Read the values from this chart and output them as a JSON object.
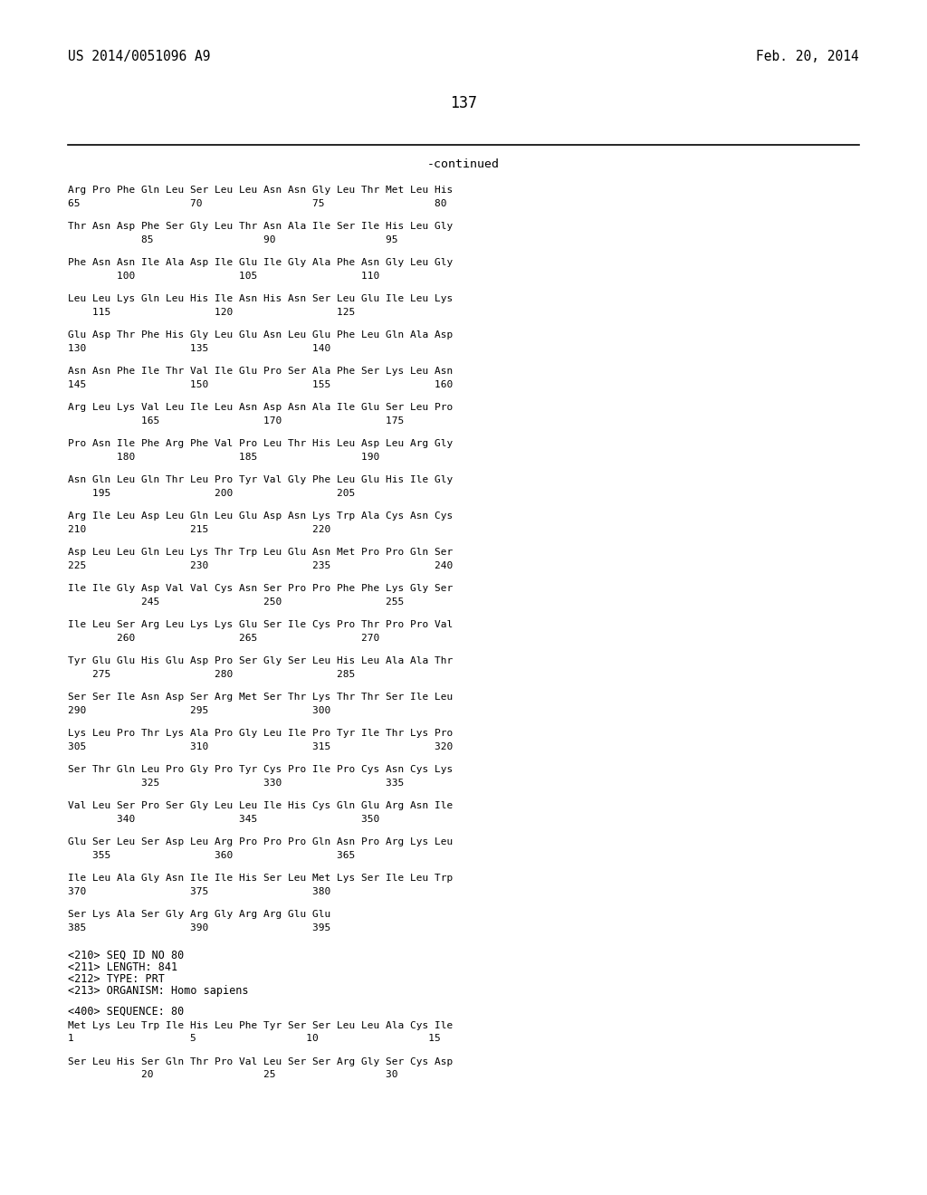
{
  "header_left": "US 2014/0051096 A9",
  "header_right": "Feb. 20, 2014",
  "page_number": "137",
  "continued_label": "-continued",
  "background_color": "#ffffff",
  "text_color": "#000000",
  "sequence_blocks": [
    {
      "seq_line": "Arg Pro Phe Gln Leu Ser Leu Leu Asn Asn Gly Leu Thr Met Leu His",
      "num_line": "65                  70                  75                  80"
    },
    {
      "seq_line": "Thr Asn Asp Phe Ser Gly Leu Thr Asn Ala Ile Ser Ile His Leu Gly",
      "num_line": "            85                  90                  95"
    },
    {
      "seq_line": "Phe Asn Asn Ile Ala Asp Ile Glu Ile Gly Ala Phe Asn Gly Leu Gly",
      "num_line": "        100                 105                 110"
    },
    {
      "seq_line": "Leu Leu Lys Gln Leu His Ile Asn His Asn Ser Leu Glu Ile Leu Lys",
      "num_line": "    115                 120                 125"
    },
    {
      "seq_line": "Glu Asp Thr Phe His Gly Leu Glu Asn Leu Glu Phe Leu Gln Ala Asp",
      "num_line": "130                 135                 140"
    },
    {
      "seq_line": "Asn Asn Phe Ile Thr Val Ile Glu Pro Ser Ala Phe Ser Lys Leu Asn",
      "num_line": "145                 150                 155                 160"
    },
    {
      "seq_line": "Arg Leu Lys Val Leu Ile Leu Asn Asp Asn Ala Ile Glu Ser Leu Pro",
      "num_line": "            165                 170                 175"
    },
    {
      "seq_line": "Pro Asn Ile Phe Arg Phe Val Pro Leu Thr His Leu Asp Leu Arg Gly",
      "num_line": "        180                 185                 190"
    },
    {
      "seq_line": "Asn Gln Leu Gln Thr Leu Pro Tyr Val Gly Phe Leu Glu His Ile Gly",
      "num_line": "    195                 200                 205"
    },
    {
      "seq_line": "Arg Ile Leu Asp Leu Gln Leu Glu Asp Asn Lys Trp Ala Cys Asn Cys",
      "num_line": "210                 215                 220"
    },
    {
      "seq_line": "Asp Leu Leu Gln Leu Lys Thr Trp Leu Glu Asn Met Pro Pro Gln Ser",
      "num_line": "225                 230                 235                 240"
    },
    {
      "seq_line": "Ile Ile Gly Asp Val Val Cys Asn Ser Pro Pro Phe Phe Lys Gly Ser",
      "num_line": "            245                 250                 255"
    },
    {
      "seq_line": "Ile Leu Ser Arg Leu Lys Lys Glu Ser Ile Cys Pro Thr Pro Pro Val",
      "num_line": "        260                 265                 270"
    },
    {
      "seq_line": "Tyr Glu Glu His Glu Asp Pro Ser Gly Ser Leu His Leu Ala Ala Thr",
      "num_line": "    275                 280                 285"
    },
    {
      "seq_line": "Ser Ser Ile Asn Asp Ser Arg Met Ser Thr Lys Thr Thr Ser Ile Leu",
      "num_line": "290                 295                 300"
    },
    {
      "seq_line": "Lys Leu Pro Thr Lys Ala Pro Gly Leu Ile Pro Tyr Ile Thr Lys Pro",
      "num_line": "305                 310                 315                 320"
    },
    {
      "seq_line": "Ser Thr Gln Leu Pro Gly Pro Tyr Cys Pro Ile Pro Cys Asn Cys Lys",
      "num_line": "            325                 330                 335"
    },
    {
      "seq_line": "Val Leu Ser Pro Ser Gly Leu Leu Ile His Cys Gln Glu Arg Asn Ile",
      "num_line": "        340                 345                 350"
    },
    {
      "seq_line": "Glu Ser Leu Ser Asp Leu Arg Pro Pro Pro Gln Asn Pro Arg Lys Leu",
      "num_line": "    355                 360                 365"
    },
    {
      "seq_line": "Ile Leu Ala Gly Asn Ile Ile His Ser Leu Met Lys Ser Ile Leu Trp",
      "num_line": "370                 375                 380"
    },
    {
      "seq_line": "Ser Lys Ala Ser Gly Arg Gly Arg Arg Glu Glu",
      "num_line": "385                 390                 395"
    }
  ],
  "metadata_lines": [
    "<210> SEQ ID NO 80",
    "<211> LENGTH: 841",
    "<212> TYPE: PRT",
    "<213> ORGANISM: Homo sapiens",
    "",
    "<400> SEQUENCE: 80"
  ],
  "bottom_seq_blocks": [
    {
      "seq_line": "Met Lys Leu Trp Ile His Leu Phe Tyr Ser Ser Leu Leu Ala Cys Ile",
      "num_line": "1                   5                  10                  15"
    },
    {
      "seq_line": "Ser Leu His Ser Gln Thr Pro Val Leu Ser Ser Arg Gly Ser Cys Asp",
      "num_line": "            20                  25                  30"
    }
  ]
}
